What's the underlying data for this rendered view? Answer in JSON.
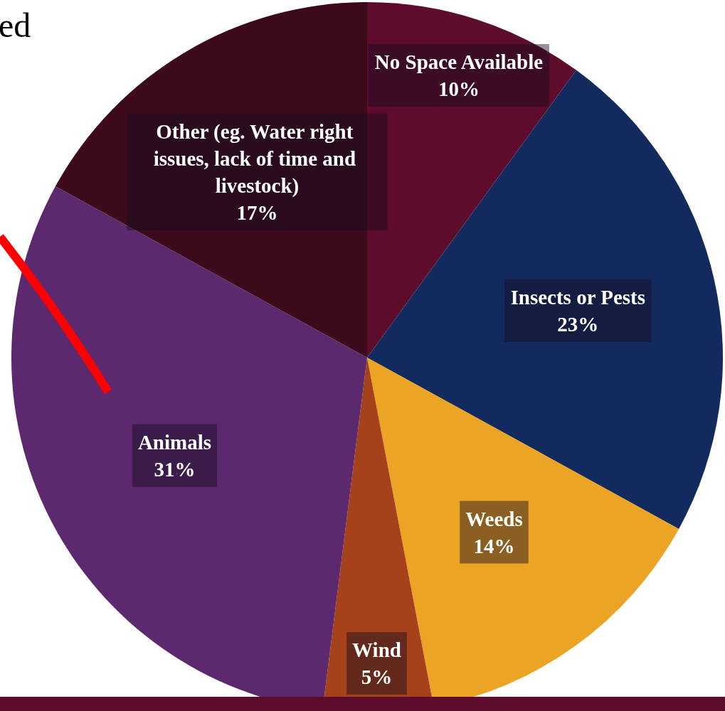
{
  "chart_data": {
    "type": "pie",
    "categories": [
      "No Space Available",
      "Insects or Pests",
      "Weeds",
      "Wind",
      "Animals",
      "Other (eg. Water right issues, lack of time and livestock)"
    ],
    "values": [
      10,
      23,
      14,
      5,
      31,
      17
    ],
    "value_labels": [
      "10%",
      "23%",
      "14%",
      "5%",
      "31%",
      "17%"
    ],
    "colors": [
      "#5e0c2c",
      "#132a5e",
      "#eba423",
      "#a5421b",
      "#5c286e",
      "#3d0a1c"
    ],
    "annotations": [
      "ed"
    ]
  }
}
